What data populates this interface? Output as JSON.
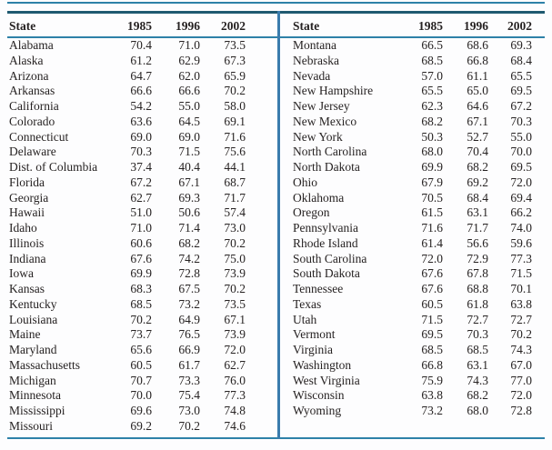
{
  "page": {
    "background": "#fdfdfe",
    "text_color": "#262222"
  },
  "colors": {
    "rule_teal": "#2e81a8",
    "rule_dark_header": "#1f5970",
    "divider_blue": "#3a7cad"
  },
  "table": {
    "columns": [
      "State",
      "1985",
      "1996",
      "2002"
    ],
    "left_rows": [
      [
        "Alabama",
        "70.4",
        "71.0",
        "73.5"
      ],
      [
        "Alaska",
        "61.2",
        "62.9",
        "67.3"
      ],
      [
        "Arizona",
        "64.7",
        "62.0",
        "65.9"
      ],
      [
        "Arkansas",
        "66.6",
        "66.6",
        "70.2"
      ],
      [
        "California",
        "54.2",
        "55.0",
        "58.0"
      ],
      [
        "Colorado",
        "63.6",
        "64.5",
        "69.1"
      ],
      [
        "Connecticut",
        "69.0",
        "69.0",
        "71.6"
      ],
      [
        "Delaware",
        "70.3",
        "71.5",
        "75.6"
      ],
      [
        "Dist. of Columbia",
        "37.4",
        "40.4",
        "44.1"
      ],
      [
        "Florida",
        "67.2",
        "67.1",
        "68.7"
      ],
      [
        "Georgia",
        "62.7",
        "69.3",
        "71.7"
      ],
      [
        "Hawaii",
        "51.0",
        "50.6",
        "57.4"
      ],
      [
        "Idaho",
        "71.0",
        "71.4",
        "73.0"
      ],
      [
        "Illinois",
        "60.6",
        "68.2",
        "70.2"
      ],
      [
        "Indiana",
        "67.6",
        "74.2",
        "75.0"
      ],
      [
        "Iowa",
        "69.9",
        "72.8",
        "73.9"
      ],
      [
        "Kansas",
        "68.3",
        "67.5",
        "70.2"
      ],
      [
        "Kentucky",
        "68.5",
        "73.2",
        "73.5"
      ],
      [
        "Louisiana",
        "70.2",
        "64.9",
        "67.1"
      ],
      [
        "Maine",
        "73.7",
        "76.5",
        "73.9"
      ],
      [
        "Maryland",
        "65.6",
        "66.9",
        "72.0"
      ],
      [
        "Massachusetts",
        "60.5",
        "61.7",
        "62.7"
      ],
      [
        "Michigan",
        "70.7",
        "73.3",
        "76.0"
      ],
      [
        "Minnesota",
        "70.0",
        "75.4",
        "77.3"
      ],
      [
        "Mississippi",
        "69.6",
        "73.0",
        "74.8"
      ],
      [
        "Missouri",
        "69.2",
        "70.2",
        "74.6"
      ]
    ],
    "right_rows": [
      [
        "Montana",
        "66.5",
        "68.6",
        "69.3"
      ],
      [
        "Nebraska",
        "68.5",
        "66.8",
        "68.4"
      ],
      [
        "Nevada",
        "57.0",
        "61.1",
        "65.5"
      ],
      [
        "New Hampshire",
        "65.5",
        "65.0",
        "69.5"
      ],
      [
        "New Jersey",
        "62.3",
        "64.6",
        "67.2"
      ],
      [
        "New Mexico",
        "68.2",
        "67.1",
        "70.3"
      ],
      [
        "New York",
        "50.3",
        "52.7",
        "55.0"
      ],
      [
        "North Carolina",
        "68.0",
        "70.4",
        "70.0"
      ],
      [
        "North Dakota",
        "69.9",
        "68.2",
        "69.5"
      ],
      [
        "Ohio",
        "67.9",
        "69.2",
        "72.0"
      ],
      [
        "Oklahoma",
        "70.5",
        "68.4",
        "69.4"
      ],
      [
        "Oregon",
        "61.5",
        "63.1",
        "66.2"
      ],
      [
        "Pennsylvania",
        "71.6",
        "71.7",
        "74.0"
      ],
      [
        "Rhode Island",
        "61.4",
        "56.6",
        "59.6"
      ],
      [
        "South Carolina",
        "72.0",
        "72.9",
        "77.3"
      ],
      [
        "South Dakota",
        "67.6",
        "67.8",
        "71.5"
      ],
      [
        "Tennessee",
        "67.6",
        "68.8",
        "70.1"
      ],
      [
        "Texas",
        "60.5",
        "61.8",
        "63.8"
      ],
      [
        "Utah",
        "71.5",
        "72.7",
        "72.7"
      ],
      [
        "Vermont",
        "69.5",
        "70.3",
        "70.2"
      ],
      [
        "Virginia",
        "68.5",
        "68.5",
        "74.3"
      ],
      [
        "Washington",
        "66.8",
        "63.1",
        "67.0"
      ],
      [
        "West Virginia",
        "75.9",
        "74.3",
        "77.0"
      ],
      [
        "Wisconsin",
        "63.8",
        "68.2",
        "72.0"
      ],
      [
        "Wyoming",
        "73.2",
        "68.0",
        "72.8"
      ]
    ]
  }
}
